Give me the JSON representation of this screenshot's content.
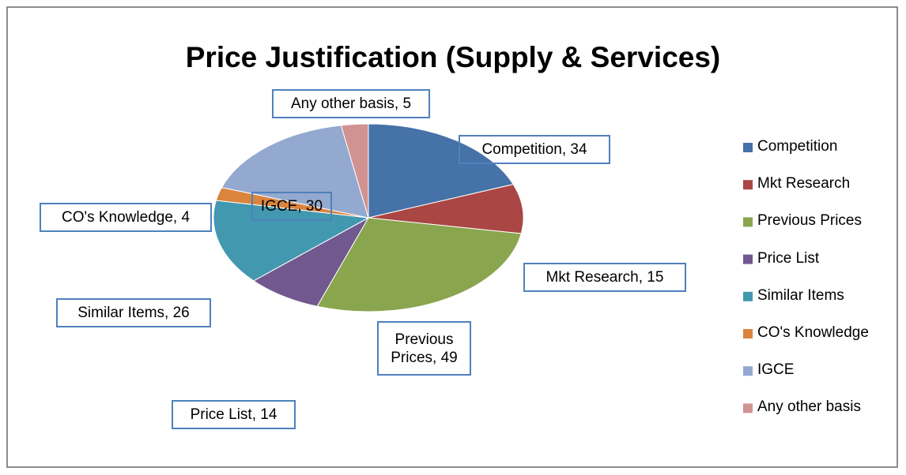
{
  "chart_data": {
    "type": "pie",
    "title": "Price Justification (Supply & Services)",
    "categories": [
      "Competition",
      "Mkt Research",
      "Previous Prices",
      "Price List",
      "Similar Items",
      "CO's Knowledge",
      "IGCE",
      "Any other basis"
    ],
    "values": [
      34,
      15,
      49,
      14,
      26,
      4,
      30,
      5
    ],
    "value_labels": [
      "Competition, 34",
      "Mkt Research, 15",
      "Previous Prices, 49",
      "Price List, 14",
      "Similar Items, 26",
      "CO's Knowledge, 4",
      "IGCE, 30",
      "Any other basis, 5"
    ],
    "colors": [
      "#4572a7",
      "#aa4643",
      "#89a54e",
      "#71588f",
      "#4198af",
      "#db843d",
      "#93a9cf",
      "#d19392"
    ],
    "legend": "right"
  }
}
